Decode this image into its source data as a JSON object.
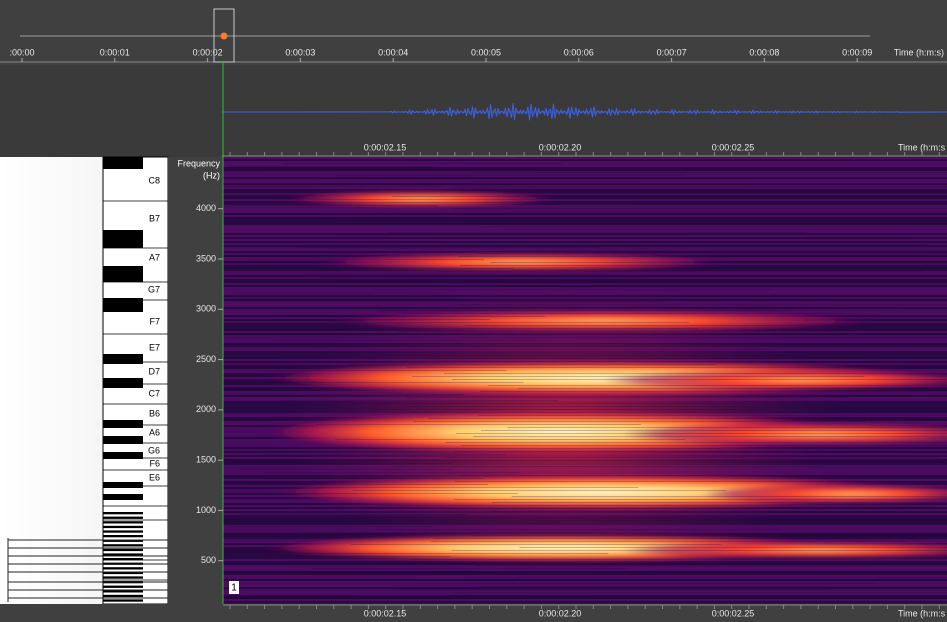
{
  "overview": {
    "ticks": [
      ":00:00",
      "0:00:01",
      "0:00:02",
      "0:00:03",
      "0:00:04",
      "0:00:05",
      "0:00:06",
      "0:00:07",
      "0:00:08",
      "0:00:09"
    ],
    "axis_label": "Time (h:m:s)"
  },
  "detail": {
    "ticks": [
      "0:00:02.15",
      "0:00:02.20",
      "0:00:02.25"
    ],
    "axis_label": "Time (h:m:s"
  },
  "spectrogram": {
    "frequency_label": "Frequency",
    "frequency_unit": "(Hz)",
    "frequency_ticks": [
      4000,
      3500,
      3000,
      2500,
      2000,
      1500,
      1000,
      500
    ],
    "channel": "1"
  },
  "piano": {
    "notes": [
      "C8",
      "B7",
      "A7",
      "G7",
      "F7",
      "E7",
      "D7",
      "C7",
      "B6",
      "A6",
      "G6",
      "F6",
      "E6"
    ]
  }
}
